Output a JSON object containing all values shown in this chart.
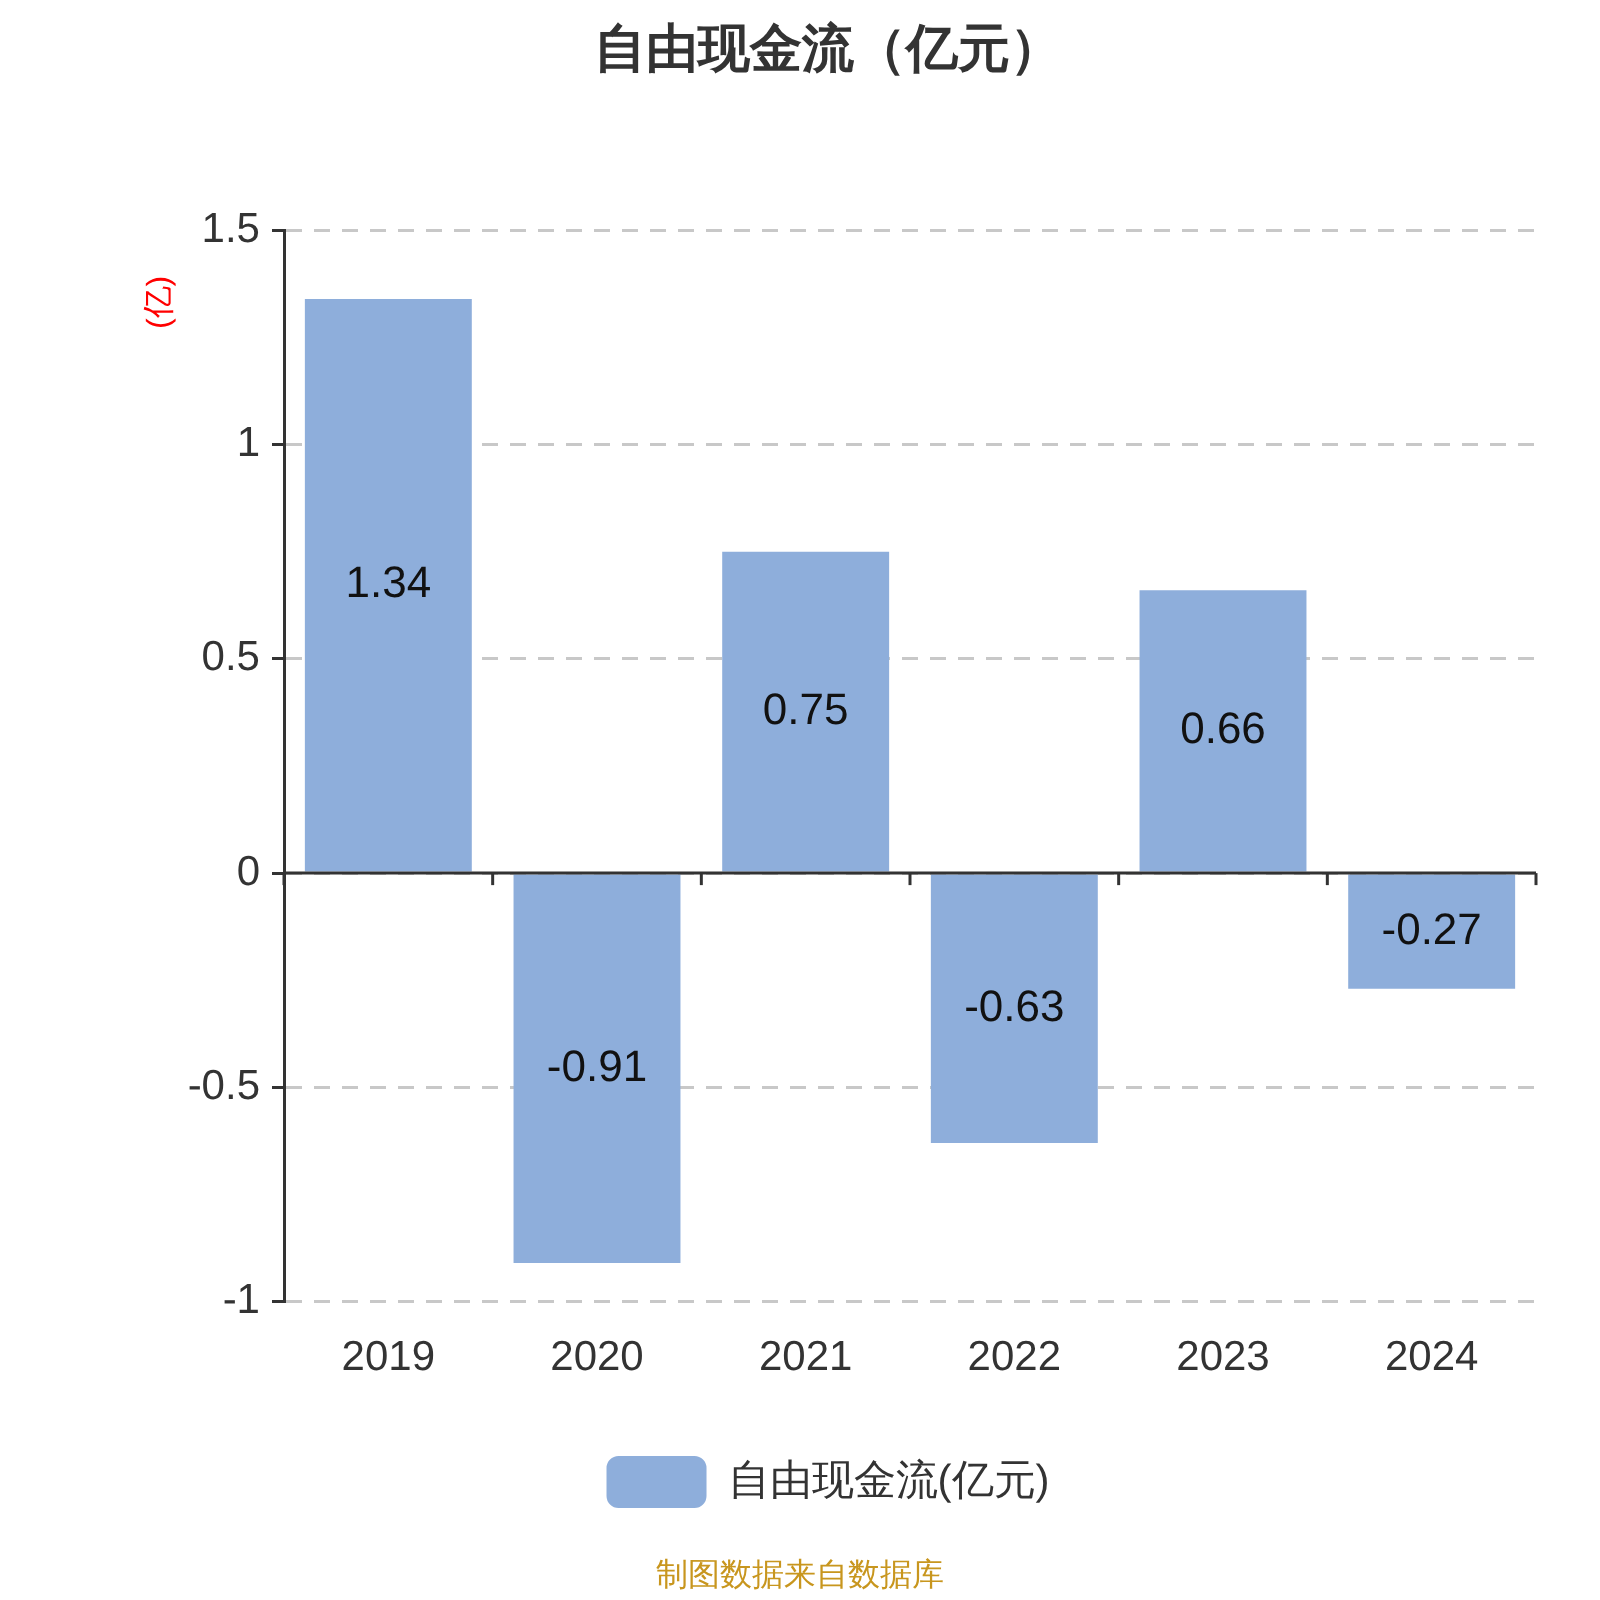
{
  "chart_data": {
    "type": "bar",
    "title": "自由现金流（亿元）",
    "ylabel": "(亿)",
    "categories": [
      "2019",
      "2020",
      "2021",
      "2022",
      "2023",
      "2024"
    ],
    "series": [
      {
        "name": "自由现金流(亿元)",
        "color": "#8eaedb",
        "values": [
          1.34,
          -0.91,
          0.75,
          -0.63,
          0.66,
          -0.27
        ]
      }
    ],
    "ylim": [
      -1,
      1.5
    ],
    "yticks": [
      -1,
      -0.5,
      0,
      0.5,
      1,
      1.5
    ],
    "grid": "y",
    "legend": "bottom",
    "data_labels": true,
    "annotations": [
      "制图数据来自数据库"
    ]
  }
}
